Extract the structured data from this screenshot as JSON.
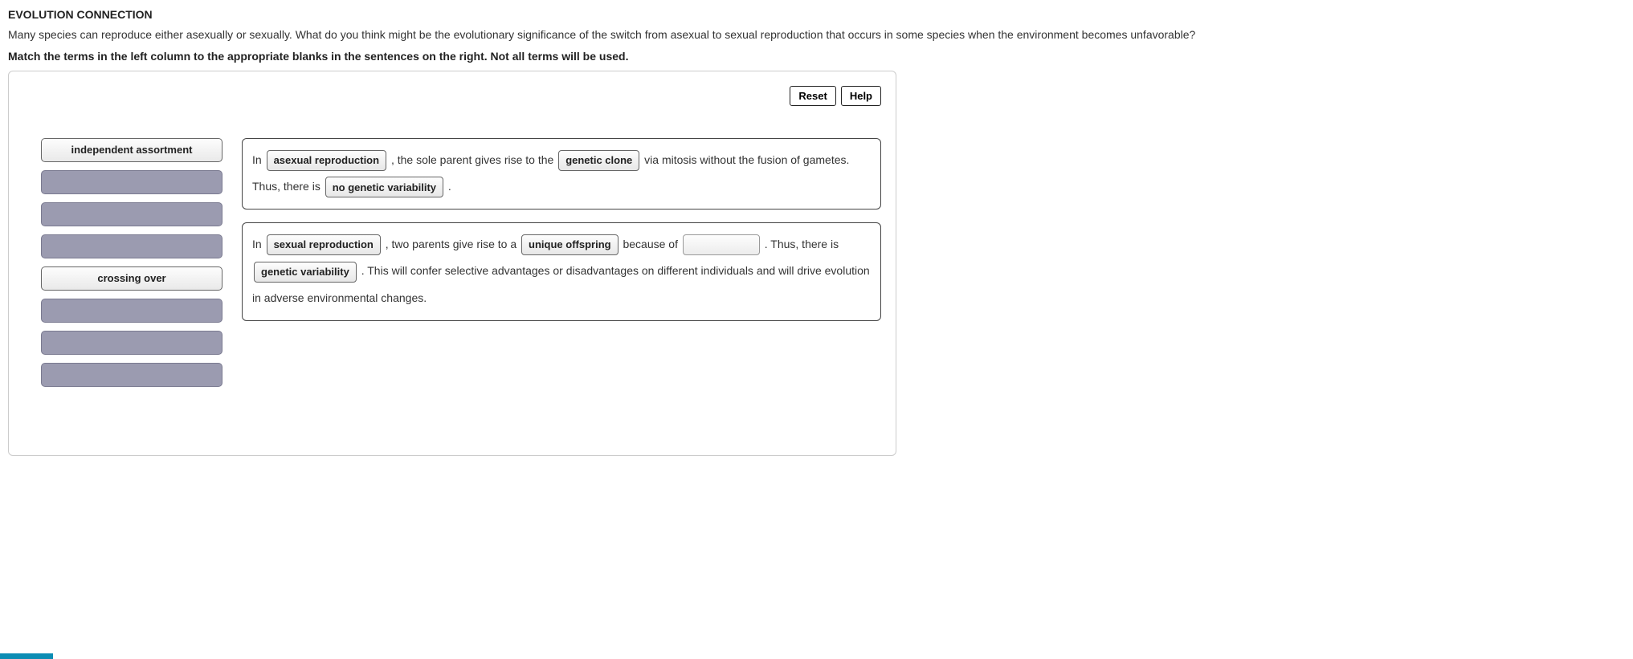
{
  "header": {
    "title": "EVOLUTION CONNECTION",
    "prompt": "Many species can reproduce either asexually or sexually. What do you think might be the evolutionary significance of the switch from asexual to sexual reproduction that occurs in some species when the environment becomes unfavorable?",
    "instruction": "Match the terms in the left column to the appropriate blanks in the sentences on the right. Not all terms will be used."
  },
  "toolbar": {
    "reset_label": "Reset",
    "help_label": "Help"
  },
  "terms": [
    {
      "label": "independent assortment",
      "used": false
    },
    {
      "label": "",
      "used": true
    },
    {
      "label": "",
      "used": true
    },
    {
      "label": "",
      "used": true
    },
    {
      "label": "crossing over",
      "used": false
    },
    {
      "label": "",
      "used": true
    },
    {
      "label": "",
      "used": true
    },
    {
      "label": "",
      "used": true
    }
  ],
  "sentence1": {
    "t0": "In ",
    "chip0": "asexual reproduction",
    "t1": " , the sole parent gives rise to the ",
    "chip1": "genetic clone",
    "t2": "  via mitosis without the fusion of gametes. Thus, there is ",
    "chip2": "no genetic variability",
    "t3": " ."
  },
  "sentence2": {
    "t0": "In ",
    "chip0": "sexual reproduction",
    "t1": " , two parents give rise to a ",
    "chip1": "unique offspring",
    "t2": "  because of ",
    "t3": " . Thus, there is ",
    "chip2": "genetic variability",
    "t4": " . This will confer selective advantages or disadvantages on different individuals and will drive evolution in adverse environmental changes."
  },
  "colors": {
    "accent": "#0c8db4",
    "term_used_bg": "#9b9bb0",
    "border": "#cccccc"
  }
}
